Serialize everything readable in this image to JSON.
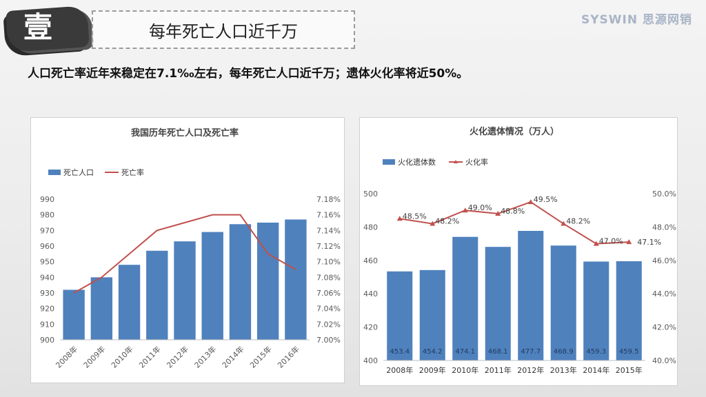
{
  "header": {
    "badge_char": "壹",
    "title": "每年死亡人口近千万",
    "brand": "SYSWIN 思源网销"
  },
  "subtitle": "人口死亡率近年来稳定在7.1‰左右，每年死亡人口近千万；遗体火化率将近50%。",
  "colors": {
    "bar": "#4f81bd",
    "line": "#c0504d"
  },
  "chart_data": [
    {
      "type": "bar",
      "title": "我国历年死亡人口及死亡率",
      "categories": [
        "2008年",
        "2009年",
        "2010年",
        "2011年",
        "2012年",
        "2013年",
        "2014年",
        "2015年",
        "2016年"
      ],
      "series": [
        {
          "name": "死亡人口",
          "kind": "bar",
          "axis": "left",
          "values": [
            932,
            940,
            948,
            957,
            963,
            969,
            974,
            975,
            977
          ]
        },
        {
          "name": "死亡率",
          "kind": "line",
          "axis": "right",
          "values": [
            7.06,
            7.08,
            7.11,
            7.14,
            7.15,
            7.16,
            7.16,
            7.11,
            7.09
          ]
        }
      ],
      "yleft": {
        "min": 900,
        "max": 990,
        "step": 10,
        "ticks": [
          "900",
          "910",
          "920",
          "930",
          "940",
          "950",
          "960",
          "970",
          "980",
          "990"
        ]
      },
      "yright": {
        "min": 7.0,
        "max": 7.18,
        "step": 0.02,
        "ticks": [
          "7.00%",
          "7.02%",
          "7.04%",
          "7.06%",
          "7.08%",
          "7.10%",
          "7.12%",
          "7.14%",
          "7.16%",
          "7.18%"
        ]
      },
      "legend_position": "top-left",
      "show_values": false
    },
    {
      "type": "bar",
      "title": "火化遗体情况（万人）",
      "categories": [
        "2008年",
        "2009年",
        "2010年",
        "2011年",
        "2012年",
        "2013年",
        "2014年",
        "2015年"
      ],
      "series": [
        {
          "name": "火化遗体数",
          "kind": "bar",
          "axis": "left",
          "values": [
            453.4,
            454.2,
            474.1,
            468.1,
            477.7,
            468.9,
            459.3,
            459.5
          ],
          "labels": [
            "453.4",
            "454.2",
            "474.1",
            "468.1",
            "477.7",
            "468.9",
            "459.3",
            "459.5"
          ]
        },
        {
          "name": "火化率",
          "kind": "line",
          "axis": "right",
          "values": [
            48.5,
            48.2,
            49.0,
            48.8,
            49.5,
            48.2,
            47.0,
            47.1
          ],
          "labels": [
            "48.5%",
            "48.2%",
            "49.0%",
            "48.8%",
            "49.5%",
            "48.2%",
            "47.0%",
            "47.1%"
          ]
        }
      ],
      "yleft": {
        "min": 400,
        "max": 500,
        "step": 20,
        "ticks": [
          "400",
          "420",
          "440",
          "460",
          "480",
          "500"
        ]
      },
      "yright": {
        "min": 40,
        "max": 50,
        "step": 2,
        "ticks": [
          "40.0%",
          "42.0%",
          "44.0%",
          "46.0%",
          "48.0%",
          "50.0%"
        ]
      },
      "legend_position": "top-left",
      "show_values": true
    }
  ]
}
